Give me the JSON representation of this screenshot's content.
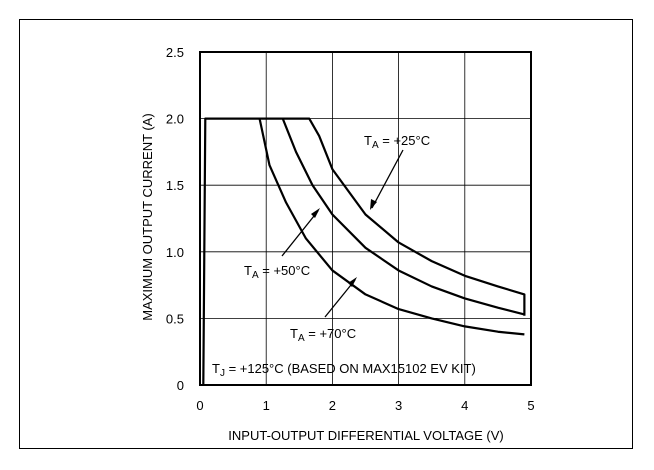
{
  "chart_data": {
    "type": "line",
    "title": "",
    "xlabel": "INPUT-OUTPUT DIFFERENTIAL VOLTAGE (V)",
    "ylabel": "MAXIMUM OUTPUT CURRENT (A)",
    "xlim": [
      0,
      5
    ],
    "ylim": [
      0,
      2.5
    ],
    "x_ticks": [
      0,
      1,
      2,
      3,
      4,
      5
    ],
    "y_ticks": [
      0,
      0.5,
      1.0,
      1.5,
      2.0,
      2.5
    ],
    "x_tick_labels": [
      "0",
      "1",
      "2",
      "3",
      "4",
      "5"
    ],
    "y_tick_labels": [
      "0",
      "0.5",
      "1.0",
      "1.5",
      "2.0",
      "2.5"
    ],
    "grid": true,
    "series": [
      {
        "name": "TA = +25°C",
        "x": [
          0.05,
          0.08,
          1.65,
          1.8,
          2.0,
          2.5,
          3.0,
          3.5,
          4.0,
          4.5,
          4.9,
          4.9
        ],
        "y": [
          0.0,
          2.0,
          2.0,
          1.87,
          1.62,
          1.28,
          1.07,
          0.93,
          0.82,
          0.74,
          0.68,
          0.52
        ]
      },
      {
        "name": "TA = +50°C",
        "x": [
          1.25,
          1.45,
          1.7,
          2.0,
          2.5,
          3.0,
          3.5,
          4.0,
          4.5,
          4.9
        ],
        "y": [
          2.0,
          1.75,
          1.5,
          1.28,
          1.03,
          0.86,
          0.74,
          0.65,
          0.58,
          0.53
        ]
      },
      {
        "name": "TA = +70°C",
        "x": [
          0.9,
          1.05,
          1.3,
          1.6,
          2.0,
          2.5,
          3.0,
          3.5,
          4.0,
          4.5,
          4.9
        ],
        "y": [
          2.0,
          1.65,
          1.37,
          1.1,
          0.86,
          0.68,
          0.57,
          0.5,
          0.44,
          0.4,
          0.38
        ]
      }
    ],
    "annotations": {
      "t25": {
        "sym": "T",
        "sub": "A",
        "rest": " = +25°C"
      },
      "t50": {
        "sym": "T",
        "sub": "A",
        "rest": " = +50°C"
      },
      "t70": {
        "sym": "T",
        "sub": "A",
        "rest": " = +70°C"
      },
      "tj": {
        "sym": "T",
        "sub": "J",
        "rest": " = +125°C (BASED ON MAX15102 EV KIT)"
      }
    }
  }
}
